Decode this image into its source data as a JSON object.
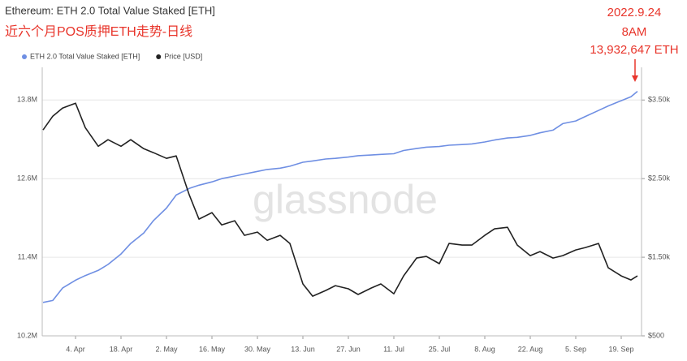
{
  "chart_data": {
    "type": "line",
    "title": "Ethereum: ETH 2.0 Total Value Staked [ETH]",
    "subtitle": "近六个月POS质押ETH走势-日线",
    "annotations": [
      "2022.9.24",
      "8AM",
      "13,932,647 ETH"
    ],
    "watermark": "glassnode",
    "x": [
      "25. Mar",
      "28. Mar",
      "31. Mar",
      "4. Apr",
      "7. Apr",
      "11. Apr",
      "14. Apr",
      "18. Apr",
      "21. Apr",
      "25. Apr",
      "28. Apr",
      "2. May",
      "5. May",
      "9. May",
      "12. May",
      "16. May",
      "19. May",
      "23. May",
      "26. May",
      "30. May",
      "2. Jun",
      "6. Jun",
      "9. Jun",
      "13. Jun",
      "16. Jun",
      "20. Jun",
      "23. Jun",
      "27. Jun",
      "30. Jun",
      "4. Jul",
      "7. Jul",
      "11. Jul",
      "14. Jul",
      "18. Jul",
      "21. Jul",
      "25. Jul",
      "28. Jul",
      "1. Aug",
      "4. Aug",
      "8. Aug",
      "11. Aug",
      "15. Aug",
      "18. Aug",
      "22. Aug",
      "25. Aug",
      "29. Aug",
      "1. Sep",
      "5. Sep",
      "8. Sep",
      "12. Sep",
      "15. Sep",
      "19. Sep",
      "22. Sep",
      "24. Sep"
    ],
    "series": [
      {
        "name": "ETH 2.0 Total Value Staked [ETH]",
        "color": "#6f8fe3",
        "axis": "y",
        "values": [
          10710000,
          10740000,
          10930000,
          11050000,
          11120000,
          11200000,
          11290000,
          11450000,
          11610000,
          11770000,
          11960000,
          12150000,
          12350000,
          12450000,
          12500000,
          12550000,
          12600000,
          12640000,
          12670000,
          12710000,
          12740000,
          12760000,
          12790000,
          12850000,
          12870000,
          12900000,
          12910000,
          12930000,
          12950000,
          12960000,
          12970000,
          12980000,
          13030000,
          13060000,
          13080000,
          13090000,
          13110000,
          13120000,
          13130000,
          13160000,
          13190000,
          13220000,
          13230000,
          13260000,
          13300000,
          13340000,
          13440000,
          13480000,
          13550000,
          13640000,
          13710000,
          13790000,
          13850000,
          13932647
        ]
      },
      {
        "name": "Price [USD]",
        "color": "#222222",
        "axis": "y2",
        "values": [
          3119,
          3294,
          3397,
          3459,
          3149,
          2912,
          2995,
          2912,
          2995,
          2881,
          2830,
          2758,
          2789,
          2294,
          1985,
          2067,
          1912,
          1964,
          1778,
          1820,
          1716,
          1778,
          1675,
          1160,
          1005,
          1077,
          1139,
          1098,
          1026,
          1108,
          1160,
          1036,
          1263,
          1490,
          1510,
          1418,
          1675,
          1655,
          1655,
          1778,
          1861,
          1881,
          1655,
          1521,
          1572,
          1490,
          1521,
          1593,
          1624,
          1675,
          1366,
          1263,
          1211,
          1263
        ]
      }
    ],
    "xticks": [
      "4. Apr",
      "18. Apr",
      "2. May",
      "16. May",
      "30. May",
      "13. Jun",
      "27. Jun",
      "11. Jul",
      "25. Jul",
      "8. Aug",
      "22. Aug",
      "5. Sep",
      "19. Sep"
    ],
    "ylim": [
      10200000,
      14200000
    ],
    "yticks": [
      {
        "value": 10200000,
        "label": "10.2M"
      },
      {
        "value": 11400000,
        "label": "11.4M"
      },
      {
        "value": 12600000,
        "label": "12.6M"
      },
      {
        "value": 13800000,
        "label": "13.8M"
      }
    ],
    "y2lim": [
      500,
      3833
    ],
    "y2ticks": [
      {
        "value": 500,
        "label": "$500"
      },
      {
        "value": 1500,
        "label": "$1.50k"
      },
      {
        "value": 2500,
        "label": "$2.50k"
      },
      {
        "value": 3500,
        "label": "$3.50k"
      }
    ],
    "grid": true
  }
}
